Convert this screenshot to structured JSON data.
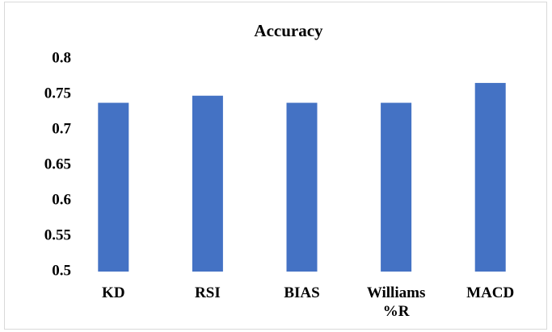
{
  "chart_data": {
    "type": "bar",
    "title": "Accuracy",
    "categories": [
      "KD",
      "RSI",
      "BIAS",
      "Williams %R",
      "MACD"
    ],
    "values": [
      0.738,
      0.748,
      0.738,
      0.738,
      0.766
    ],
    "color": "#4472c4",
    "ylim": [
      0.5,
      0.8
    ],
    "yticks": [
      0.5,
      0.55,
      0.6,
      0.65,
      0.7,
      0.75,
      0.8
    ],
    "grid": false
  }
}
